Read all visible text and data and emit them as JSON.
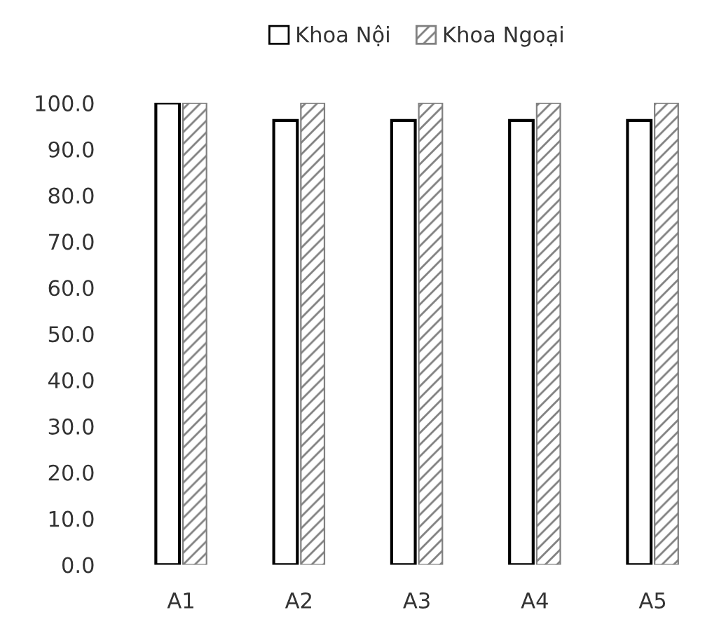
{
  "chart_data": {
    "type": "bar",
    "categories": [
      "A1",
      "A2",
      "A3",
      "A4",
      "A5"
    ],
    "series": [
      {
        "name": "Khoa Nội",
        "color": "#000000",
        "values": [
          100,
          96.2,
          96.2,
          96.2,
          96.2
        ]
      },
      {
        "name": "Khoa Ngoại",
        "color": "#808080",
        "values": [
          100,
          100,
          100,
          100,
          100
        ]
      }
    ],
    "ylim": [
      0,
      100
    ],
    "yticks": [
      {
        "value": 0,
        "label": "0.0"
      },
      {
        "value": 10,
        "label": "10.0"
      },
      {
        "value": 20,
        "label": "20.0"
      },
      {
        "value": 30,
        "label": "30.0"
      },
      {
        "value": 40,
        "label": "40.0"
      },
      {
        "value": 50,
        "label": "50.0"
      },
      {
        "value": 60,
        "label": "60.0"
      },
      {
        "value": 70,
        "label": "70.0"
      },
      {
        "value": 80,
        "label": "80.0"
      },
      {
        "value": 90,
        "label": "90.0"
      },
      {
        "value": 100,
        "label": "100.0"
      }
    ],
    "grid": false,
    "legend": "top"
  }
}
